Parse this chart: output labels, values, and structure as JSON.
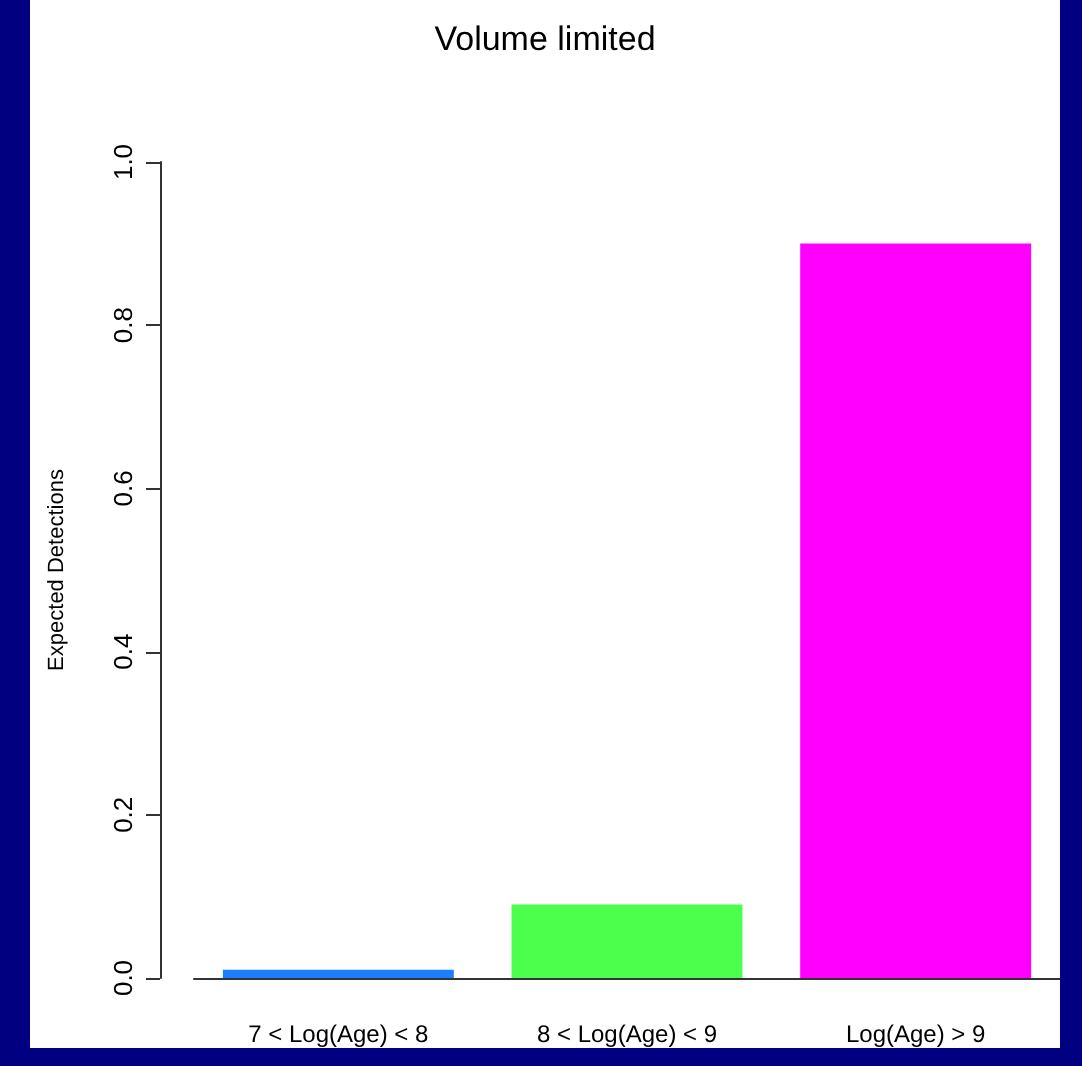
{
  "chart_data": {
    "type": "bar",
    "title": "Volume limited",
    "ylabel": "Expected Detections",
    "categories": [
      "7 < Log(Age) < 8",
      "8 < Log(Age) < 9",
      "Log(Age) > 9"
    ],
    "values": [
      0.01,
      0.09,
      0.9
    ],
    "colors": [
      "#1a80ff",
      "#4dff4d",
      "#ff00ff"
    ],
    "ylim": [
      0,
      1
    ],
    "yticks": [
      {
        "value": 0,
        "label": "0.0"
      },
      0.2,
      0.4,
      0.6,
      0.8,
      {
        "value": 1,
        "label": "1.0"
      }
    ],
    "grid": false
  }
}
